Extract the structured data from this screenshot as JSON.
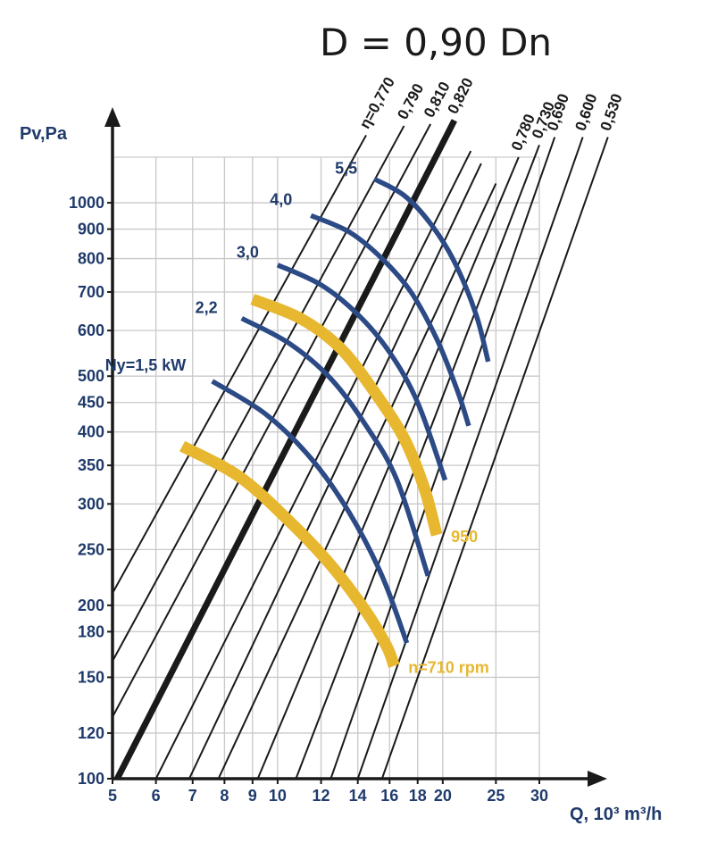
{
  "chart_data": {
    "type": "line",
    "title": "D = 0,90 Dn",
    "xlabel": "Q, 10³ m³/h",
    "ylabel": "Pv,Pa",
    "x_scale": "log",
    "y_scale": "log",
    "xlim": [
      5,
      30
    ],
    "ylim": [
      100,
      1200
    ],
    "grid": true,
    "x_ticks": [
      5,
      6,
      7,
      8,
      9,
      10,
      12,
      14,
      16,
      18,
      20,
      25,
      30
    ],
    "x_tick_labels": [
      "5",
      "6",
      "7",
      "8",
      "9",
      "10",
      "12",
      "14",
      "16",
      "18",
      "20",
      "25",
      "30"
    ],
    "y_ticks": [
      100,
      120,
      150,
      180,
      200,
      250,
      300,
      350,
      400,
      450,
      500,
      600,
      700,
      800,
      900,
      1000
    ],
    "y_tick_labels": [
      "100",
      "120",
      "150",
      "180",
      "200",
      "250",
      "300",
      "350",
      "400",
      "450",
      "500",
      "600",
      "700",
      "800",
      "900",
      "1000"
    ],
    "efficiency_lines": [
      {
        "label": "η=0,770",
        "x0": 5.0,
        "y0": 210,
        "x1": 14.5,
        "y1": 1310,
        "bold": false
      },
      {
        "label": "0,790",
        "x0": 5.0,
        "y0": 160,
        "x1": 17.0,
        "y1": 1360,
        "bold": false
      },
      {
        "label": "0,810",
        "x0": 5.0,
        "y0": 128,
        "x1": 19.0,
        "y1": 1370,
        "bold": false
      },
      {
        "label": "0,820",
        "x0": 5.1,
        "y0": 100,
        "x1": 21.0,
        "y1": 1390,
        "bold": true
      },
      {
        "label": "",
        "x0": 6.0,
        "y0": 100,
        "x1": 22.5,
        "y1": 1230,
        "bold": false
      },
      {
        "label": "",
        "x0": 6.9,
        "y0": 100,
        "x1": 23.5,
        "y1": 1170,
        "bold": false
      },
      {
        "label": "",
        "x0": 7.8,
        "y0": 100,
        "x1": 25.0,
        "y1": 1080,
        "bold": false
      },
      {
        "label": "0,780",
        "x0": 9.2,
        "y0": 100,
        "x1": 27.5,
        "y1": 1200,
        "bold": false
      },
      {
        "label": "0,730",
        "x0": 10.8,
        "y0": 100,
        "x1": 30.0,
        "y1": 1260,
        "bold": false
      },
      {
        "label": "0,690",
        "x0": 12.5,
        "y0": 100,
        "x1": 32.0,
        "y1": 1300,
        "bold": false
      },
      {
        "label": "0,600",
        "x0": 14.0,
        "y0": 100,
        "x1": 36.0,
        "y1": 1300,
        "bold": false
      },
      {
        "label": "0,530",
        "x0": 15.5,
        "y0": 100,
        "x1": 40.0,
        "y1": 1300,
        "bold": false
      }
    ],
    "speed_curves": [
      {
        "label": "n=710 rpm",
        "points": [
          [
            6.7,
            378
          ],
          [
            8.5,
            335
          ],
          [
            10.5,
            280
          ],
          [
            12.5,
            235
          ],
          [
            14.5,
            195
          ],
          [
            15.8,
            170
          ],
          [
            16.3,
            157
          ]
        ]
      },
      {
        "label": "950",
        "points": [
          [
            9.0,
            680
          ],
          [
            11.0,
            630
          ],
          [
            13.0,
            560
          ],
          [
            15.0,
            470
          ],
          [
            17.0,
            390
          ],
          [
            18.5,
            320
          ],
          [
            19.5,
            265
          ]
        ]
      }
    ],
    "power_curves": [
      {
        "label": "Ny=1,5 kW",
        "points": [
          [
            7.6,
            490
          ],
          [
            9.5,
            430
          ],
          [
            11.5,
            360
          ],
          [
            13.5,
            290
          ],
          [
            15.5,
            225
          ],
          [
            17.2,
            172
          ]
        ]
      },
      {
        "label": "2,2",
        "points": [
          [
            8.6,
            630
          ],
          [
            10.5,
            570
          ],
          [
            12.5,
            495
          ],
          [
            14.5,
            410
          ],
          [
            16.5,
            330
          ],
          [
            18.8,
            225
          ]
        ]
      },
      {
        "label": "3,0",
        "points": [
          [
            10.0,
            780
          ],
          [
            12.0,
            720
          ],
          [
            14.0,
            640
          ],
          [
            16.0,
            550
          ],
          [
            18.0,
            450
          ],
          [
            20.2,
            330
          ]
        ]
      },
      {
        "label": "4,0",
        "points": [
          [
            11.5,
            950
          ],
          [
            13.5,
            890
          ],
          [
            15.5,
            800
          ],
          [
            17.5,
            700
          ],
          [
            19.5,
            580
          ],
          [
            21.3,
            470
          ],
          [
            22.3,
            410
          ]
        ]
      },
      {
        "label": "5,5",
        "points": [
          [
            15.0,
            1100
          ],
          [
            17.0,
            1030
          ],
          [
            19.0,
            920
          ],
          [
            21.0,
            790
          ],
          [
            23.0,
            640
          ],
          [
            24.2,
            530
          ]
        ]
      }
    ],
    "colors": {
      "speed": "#e8b730",
      "power": "#2c4a86",
      "efficiency": "#1a1a1a",
      "grid": "#c9c9c9",
      "axis": "#1a1a1a",
      "text": "#1f3a6b"
    }
  }
}
